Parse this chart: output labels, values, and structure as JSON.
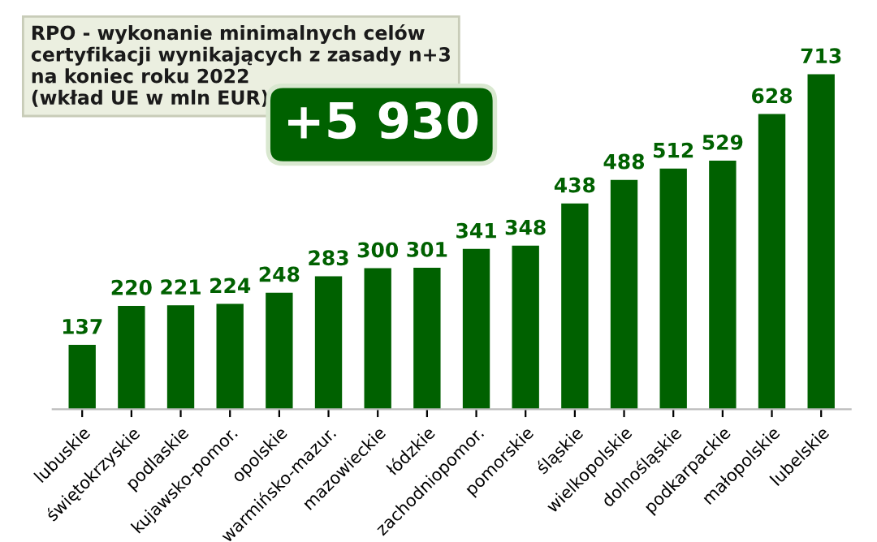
{
  "chart_data": {
    "type": "bar",
    "title": "RPO - wykonanie minimalnych celów\ncertyfikacji wynikających z zasady n+3\nna koniec roku 2022\n(wkład UE w mln EUR)",
    "annotations": [
      "+5 930"
    ],
    "categories": [
      "lubuskie",
      "świętokrzyskie",
      "podlaskie",
      "kujawsko-pomor.",
      "opolskie",
      "warmińsko-mazur.",
      "mazowieckie",
      "łódzkie",
      "zachodniopomor.",
      "pomorskie",
      "śląskie",
      "wielkopolskie",
      "dolnośląskie",
      "podkarpackie",
      "małopolskie",
      "lubelskie"
    ],
    "values": [
      137,
      220,
      221,
      224,
      248,
      283,
      300,
      301,
      341,
      348,
      438,
      488,
      512,
      529,
      628,
      713
    ],
    "color": "#006100",
    "data_labels": true
  }
}
